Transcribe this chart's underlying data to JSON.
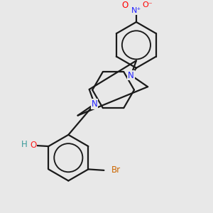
{
  "background_color": "#e8e8e8",
  "bond_color": "#1a1a1a",
  "atom_colors": {
    "N": "#2020ff",
    "O": "#ff0000",
    "Br": "#cc6600",
    "HO_H": "#3a9a9a",
    "HO_O": "#ff2020"
  },
  "bond_lw": 1.6,
  "figsize": [
    3.0,
    3.0
  ],
  "dpi": 100,
  "xlim": [
    -1.5,
    1.8
  ],
  "ylim": [
    -1.6,
    2.2
  ]
}
